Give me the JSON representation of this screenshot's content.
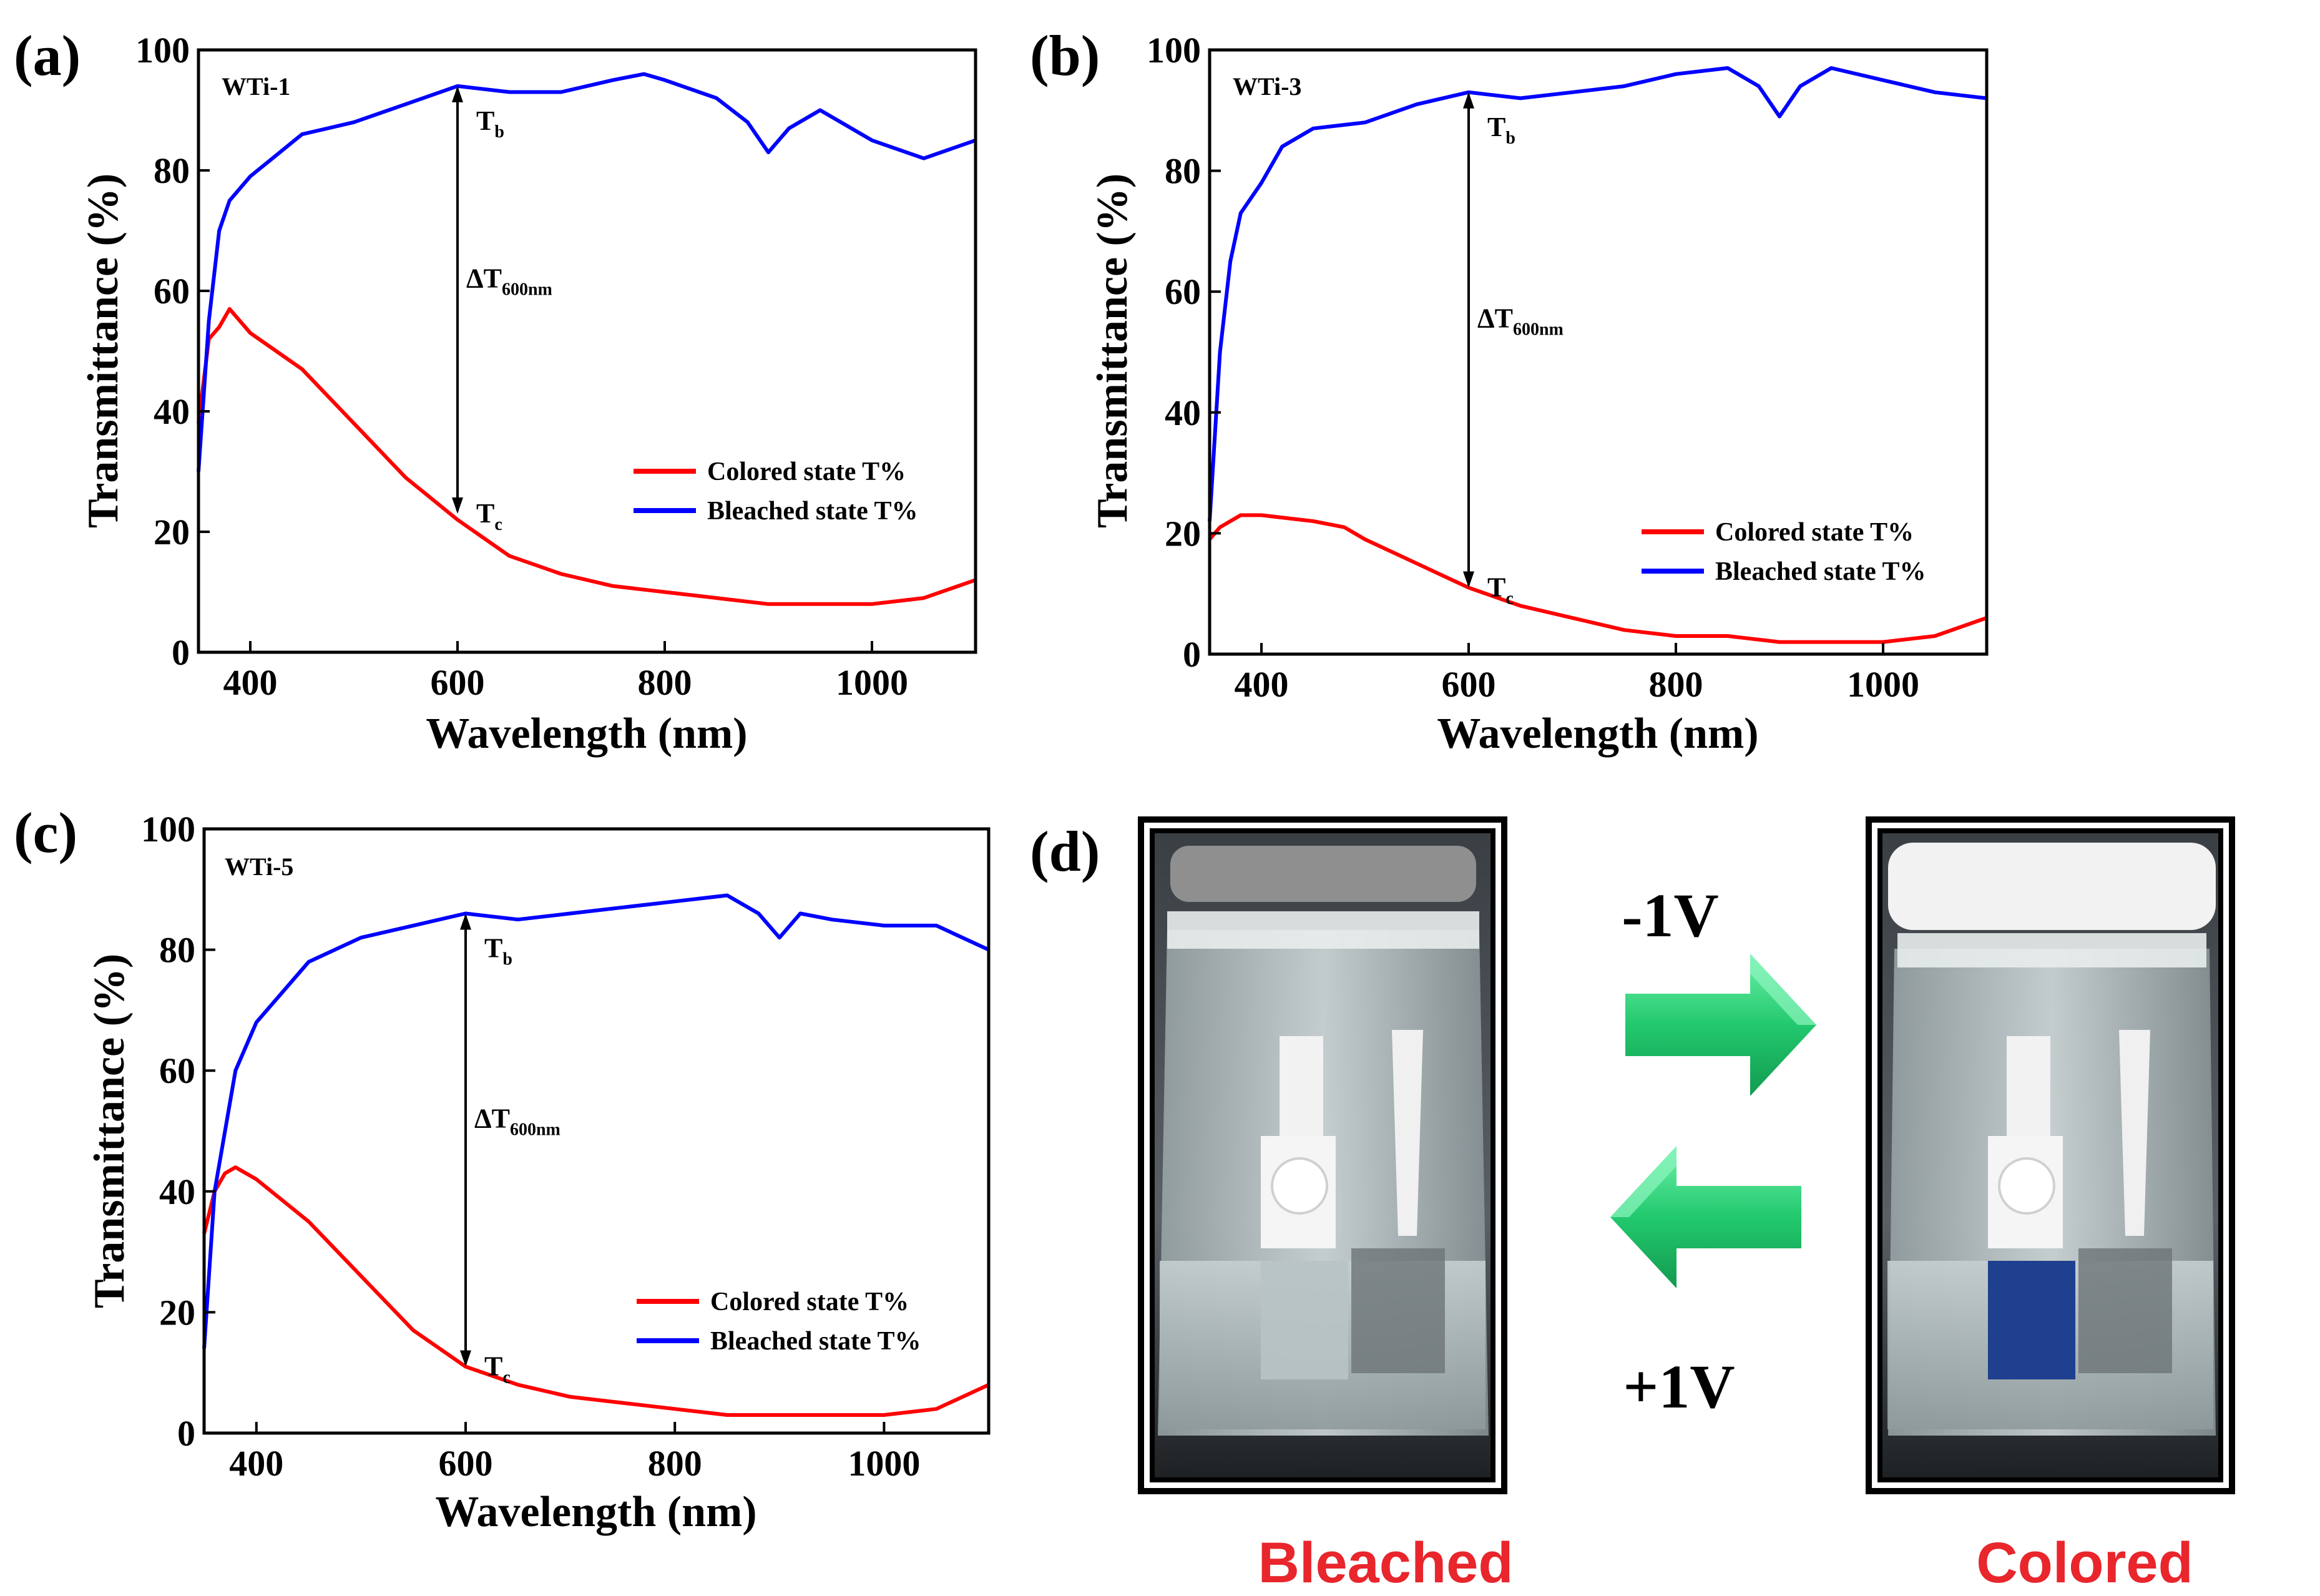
{
  "chart_data": [
    {
      "type": "line",
      "panel_label": "(a)",
      "sample": "WTi-1",
      "xlabel": "Wavelength (nm)",
      "ylabel": "Transmittance (%)",
      "xlim": [
        350,
        1100
      ],
      "ylim": [
        0,
        100
      ],
      "xticks": [
        400,
        600,
        800,
        1000
      ],
      "yticks": [
        0,
        20,
        40,
        60,
        80,
        100
      ],
      "annotation": {
        "x": 600,
        "y_top": 94,
        "y_bottom": 23,
        "top_label": "T",
        "top_sub": "b",
        "delta_label": "ΔT",
        "delta_sub": "600nm",
        "bottom_label": "T",
        "bottom_sub": "c"
      },
      "series": [
        {
          "name": "Colored state T%",
          "color": "#ff0000",
          "x": [
            350,
            360,
            370,
            380,
            400,
            450,
            500,
            550,
            600,
            650,
            700,
            750,
            800,
            850,
            900,
            950,
            1000,
            1050,
            1100
          ],
          "y": [
            38,
            52,
            54,
            57,
            53,
            47,
            38,
            29,
            22,
            16,
            13,
            11,
            10,
            9,
            8,
            8,
            8,
            9,
            12
          ]
        },
        {
          "name": "Bleached state T%",
          "color": "#0000ff",
          "x": [
            350,
            360,
            370,
            380,
            400,
            450,
            500,
            550,
            600,
            650,
            700,
            750,
            780,
            800,
            850,
            880,
            900,
            920,
            950,
            1000,
            1050,
            1100
          ],
          "y": [
            30,
            55,
            70,
            75,
            79,
            86,
            88,
            91,
            94,
            93,
            93,
            95,
            96,
            95,
            92,
            88,
            83,
            87,
            90,
            85,
            82,
            85
          ]
        }
      ]
    },
    {
      "type": "line",
      "panel_label": "(b)",
      "sample": "WTi-3",
      "xlabel": "Wavelength (nm)",
      "ylabel": "Transmittance (%)",
      "xlim": [
        350,
        1100
      ],
      "ylim": [
        0,
        100
      ],
      "xticks": [
        400,
        600,
        800,
        1000
      ],
      "yticks": [
        0,
        20,
        40,
        60,
        80,
        100
      ],
      "annotation": {
        "x": 600,
        "y_top": 93,
        "y_bottom": 11,
        "top_label": "T",
        "top_sub": "b",
        "delta_label": "ΔT",
        "delta_sub": "600nm",
        "bottom_label": "T",
        "bottom_sub": "c"
      },
      "series": [
        {
          "name": "Colored state T%",
          "color": "#ff0000",
          "x": [
            350,
            360,
            380,
            400,
            450,
            480,
            500,
            550,
            600,
            650,
            700,
            750,
            800,
            850,
            900,
            950,
            1000,
            1050,
            1100
          ],
          "y": [
            19,
            21,
            23,
            23,
            22,
            21,
            19,
            15,
            11,
            8,
            6,
            4,
            3,
            3,
            2,
            2,
            2,
            3,
            6
          ]
        },
        {
          "name": "Bleached state T%",
          "color": "#0000ff",
          "x": [
            350,
            360,
            370,
            380,
            400,
            420,
            450,
            500,
            550,
            600,
            650,
            700,
            750,
            800,
            850,
            880,
            900,
            920,
            950,
            1000,
            1050,
            1100
          ],
          "y": [
            22,
            50,
            65,
            73,
            78,
            84,
            87,
            88,
            91,
            93,
            92,
            93,
            94,
            96,
            97,
            94,
            89,
            94,
            97,
            95,
            93,
            92
          ]
        }
      ]
    },
    {
      "type": "line",
      "panel_label": "(c)",
      "sample": "WTi-5",
      "xlabel": "Wavelength (nm)",
      "ylabel": "Transmittance (%)",
      "xlim": [
        350,
        1100
      ],
      "ylim": [
        0,
        100
      ],
      "xticks": [
        400,
        600,
        800,
        1000
      ],
      "yticks": [
        0,
        20,
        40,
        60,
        80,
        100
      ],
      "annotation": {
        "x": 600,
        "y_top": 86,
        "y_bottom": 11,
        "top_label": "T",
        "top_sub": "b",
        "delta_label": "ΔT",
        "delta_sub": "600nm",
        "bottom_label": "T",
        "bottom_sub": "c"
      },
      "series": [
        {
          "name": "Colored state T%",
          "color": "#ff0000",
          "x": [
            350,
            360,
            370,
            380,
            400,
            450,
            500,
            550,
            600,
            650,
            700,
            750,
            800,
            850,
            900,
            950,
            1000,
            1050,
            1100
          ],
          "y": [
            33,
            40,
            43,
            44,
            42,
            35,
            26,
            17,
            11,
            8,
            6,
            5,
            4,
            3,
            3,
            3,
            3,
            4,
            8
          ]
        },
        {
          "name": "Bleached state T%",
          "color": "#0000ff",
          "x": [
            350,
            360,
            380,
            400,
            450,
            500,
            550,
            600,
            650,
            700,
            750,
            800,
            850,
            880,
            900,
            920,
            950,
            1000,
            1050,
            1100
          ],
          "y": [
            14,
            40,
            60,
            68,
            78,
            82,
            84,
            86,
            85,
            86,
            87,
            88,
            89,
            86,
            82,
            86,
            85,
            84,
            84,
            80
          ]
        }
      ]
    }
  ],
  "photo_panel": {
    "panel_label": "(d)",
    "forward_voltage": "-1V",
    "reverse_voltage": "+1V",
    "left_caption": "Bleached",
    "right_caption": "Colored"
  }
}
